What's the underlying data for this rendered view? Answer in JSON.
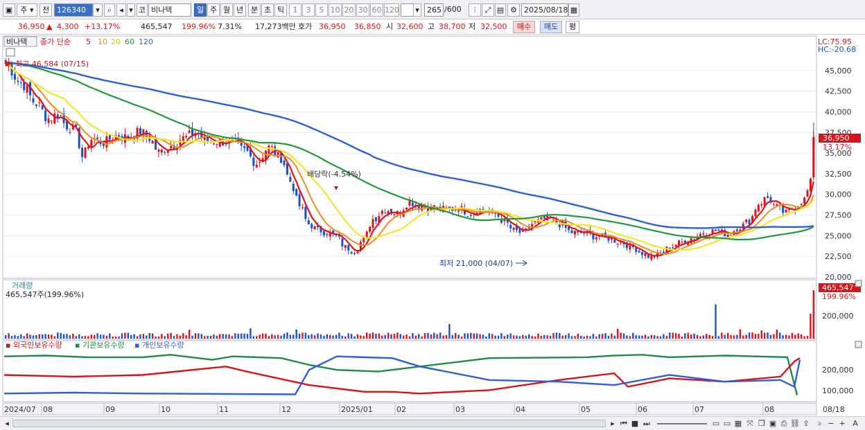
{
  "toolbar": {
    "period_label": "주",
    "prev_label": "전",
    "code": "126340",
    "name_prefix": "코",
    "stock_name": "비나텍",
    "tf_day": "일",
    "tf_week": "주",
    "tf_month": "월",
    "tf_year": "년",
    "tf_minute": "분",
    "tf_second": "초",
    "tf_tick": "틱",
    "mult": [
      "1",
      "3",
      "5",
      "10",
      "20",
      "30",
      "60",
      "120"
    ],
    "count": "265",
    "count_total": "/600",
    "date": "2025/08/18"
  },
  "quote": {
    "price": "36,950",
    "change": "4,300",
    "change_pct": "+13.17%",
    "volume": "465,547",
    "volume_ratio": "199.96%",
    "turnover": "7.31%",
    "trade_value": "17,273백만",
    "ask_label": "호가",
    "ask": "36,950",
    "bid": "36,850",
    "open_label": "시",
    "open": "32,600",
    "high_label": "고",
    "high": "38,700",
    "low_label": "저",
    "low": "32,500",
    "buy_label": "매수",
    "sell_label": "매도",
    "avg_label": "평"
  },
  "price_panel": {
    "stock_label": "비나텍",
    "ma_label": "종가 단순",
    "ma_periods": [
      "5",
      "10",
      "20",
      "60",
      "120"
    ],
    "max_annotation": "최고 46,584 (07/15)",
    "min_annotation": "최저 21,000 (04/07)",
    "event_annotation": "배당락(-4.54%)",
    "lc_label": "LC:75.95",
    "hc_label": "HC:-20.68",
    "current_price_tag": "36,950",
    "current_pct_tag": "13.17%",
    "y_ticks": [
      "45,000",
      "42,500",
      "40,000",
      "37,500",
      "35,000",
      "32,500",
      "30,000",
      "27,500",
      "25,000",
      "22,500",
      "20,000"
    ]
  },
  "volume_panel": {
    "title": "거래량",
    "value_label": "465,547주(199.96%)",
    "tag_value": "465,547",
    "tag_pct": "199.96%",
    "y_tick": "200,000"
  },
  "holdings_panel": {
    "legend": [
      "외국인보유수량",
      "기관보유수량",
      "개인보유수량"
    ],
    "y_ticks": [
      "200,000",
      "100,000"
    ]
  },
  "x_axis": {
    "labels": [
      "2024/07",
      "08",
      "09",
      "10",
      "11",
      "12",
      "2025/01",
      "02",
      "03",
      "04",
      "05",
      "06",
      "07",
      "08"
    ],
    "right_label": "08/18"
  },
  "colors": {
    "up": "#d8141b",
    "down": "#1a4fd0",
    "ma5": "#e0141b",
    "ma10": "#f08c1e",
    "ma20": "#f5e62a",
    "ma60": "#1f9a3a",
    "ma120": "#2d5fd8",
    "foreign": "#d8141b",
    "institution": "#1f8a4a",
    "individual": "#2d5fd8"
  }
}
